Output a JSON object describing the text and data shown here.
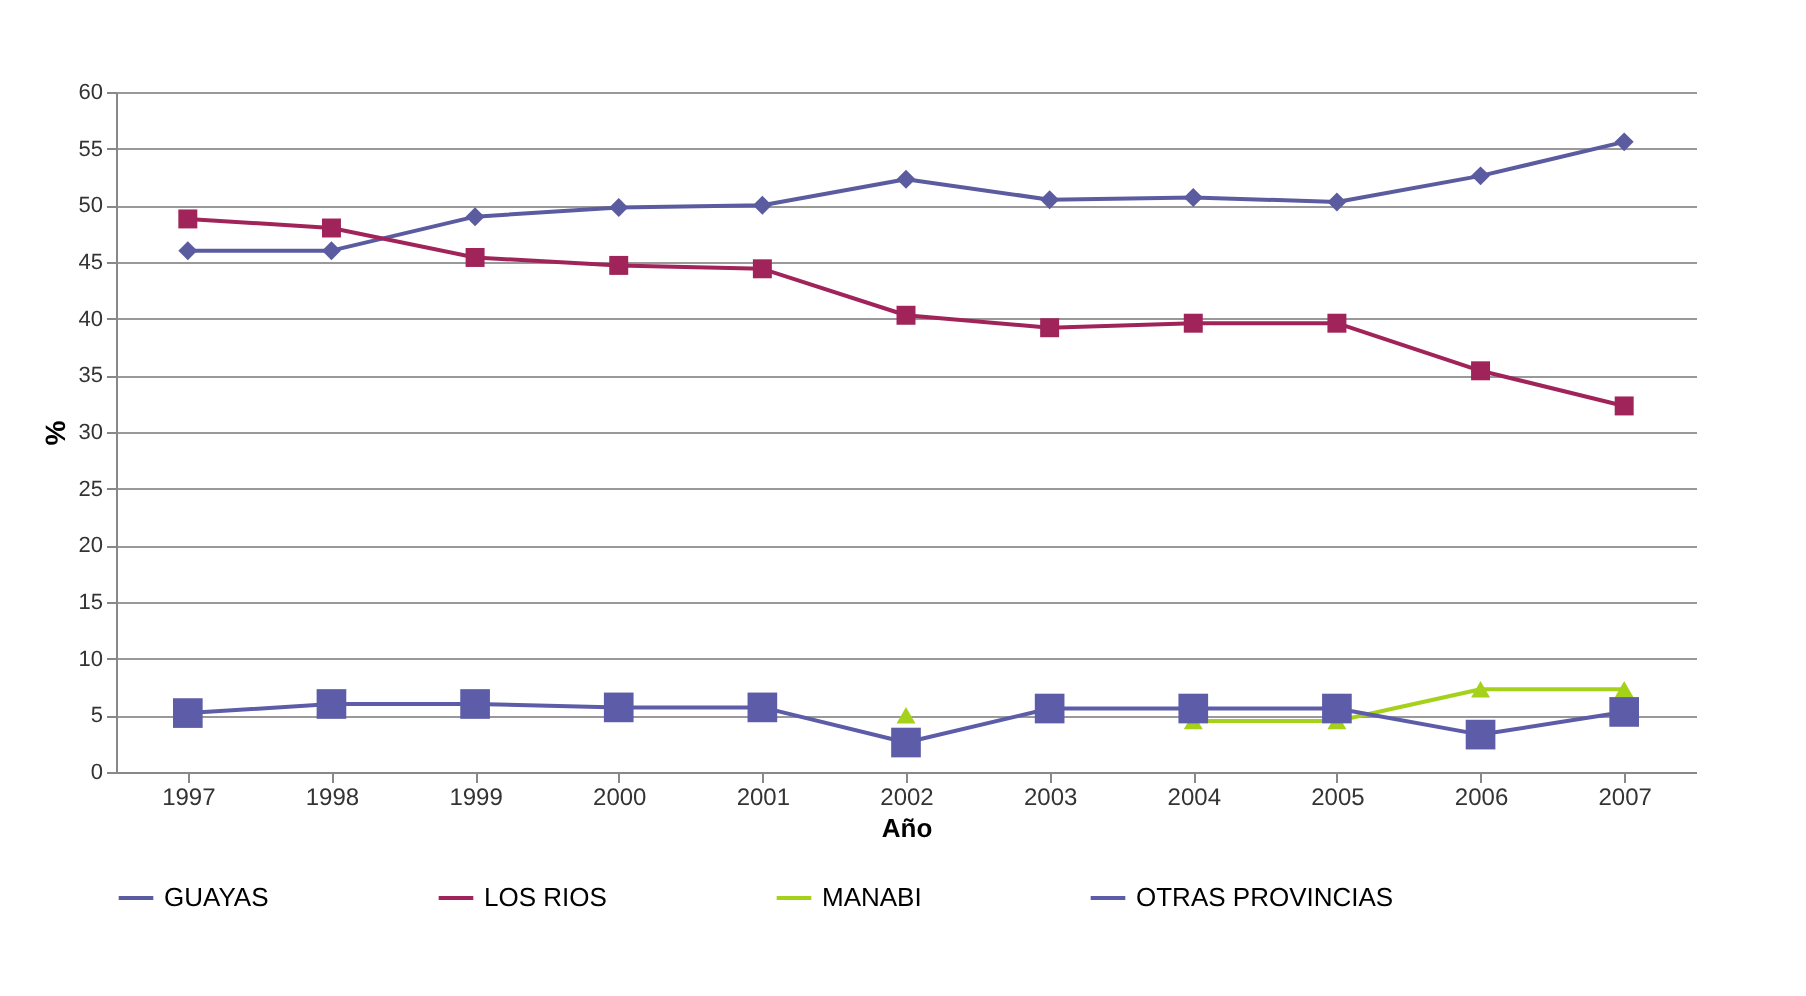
{
  "chart_data": {
    "type": "line",
    "xlabel": "Año",
    "ylabel": "%",
    "categories": [
      "1997",
      "1998",
      "1999",
      "2000",
      "2001",
      "2002",
      "2003",
      "2004",
      "2005",
      "2006",
      "2007"
    ],
    "series": [
      {
        "name": "GUAYAS",
        "color": "#5b5ba0",
        "marker": "diamond",
        "values": [
          46,
          46,
          49,
          49.8,
          50,
          52.3,
          50.5,
          50.7,
          50.3,
          52.6,
          55.6
        ]
      },
      {
        "name": "LOS RIOS",
        "color": "#a0245a",
        "marker": "square",
        "values": [
          48.8,
          48,
          45.4,
          44.7,
          44.4,
          40.3,
          39.2,
          39.6,
          39.6,
          35.4,
          32.3
        ]
      },
      {
        "name": "MANABI",
        "color": "#a6d11a",
        "marker": "triangle",
        "values": [
          null,
          null,
          null,
          null,
          null,
          5,
          null,
          4.5,
          4.5,
          7.3,
          7.3
        ]
      },
      {
        "name": "OTRAS PROVINCIAS",
        "color": "#5c5ca8",
        "marker": "square",
        "values": [
          5.2,
          6,
          6,
          5.7,
          5.7,
          2.6,
          5.6,
          5.6,
          5.6,
          3.3,
          5.3
        ]
      }
    ],
    "ylim": [
      0,
      60
    ],
    "yticks": [
      0,
      5,
      10,
      15,
      20,
      25,
      30,
      35,
      40,
      45,
      50,
      55,
      60
    ],
    "grid": "y",
    "legend": "bottom",
    "line_style": "solid"
  }
}
